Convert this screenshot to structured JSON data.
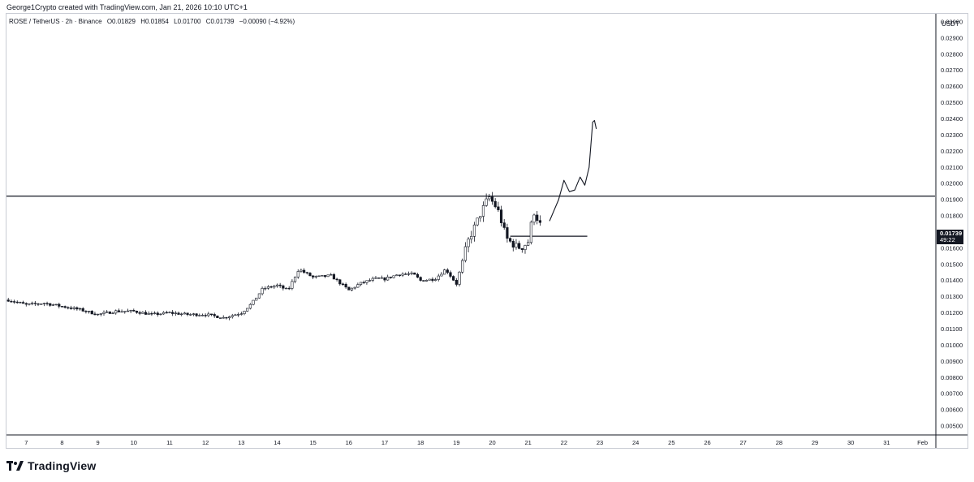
{
  "header": {
    "caption": "George1Crypto created with TradingView.com, Jan 21, 2026 10:10 UTC+1"
  },
  "symbol": {
    "name": "ROSE / TetherUS · 2h · Binance",
    "open": "O0.01829",
    "high": "H0.01854",
    "low": "L0.01700",
    "close": "C0.01739",
    "change": "−0.00090 (−4.92%)"
  },
  "price_axis": {
    "currency": "USDT",
    "last_price": "0.01739",
    "countdown": "49:22"
  },
  "brand": {
    "name": "TradingView"
  },
  "colors": {
    "candle": "#131722",
    "axis_border": "#c9ccd4",
    "background": "#ffffff"
  },
  "chart_data": {
    "type": "candlestick",
    "y_ticks": [
      "0.03000",
      "0.02900",
      "0.02800",
      "0.02700",
      "0.02600",
      "0.02500",
      "0.02400",
      "0.02300",
      "0.02200",
      "0.02100",
      "0.02000",
      "0.01900",
      "0.01800",
      "0.01700",
      "0.01600",
      "0.01500",
      "0.01400",
      "0.01300",
      "0.01200",
      "0.01100",
      "0.01000",
      "0.00900",
      "0.00800",
      "0.00700",
      "0.00600",
      "0.00500"
    ],
    "ylim": [
      0.0045,
      0.0305
    ],
    "x_ticks": [
      {
        "label": "7",
        "day": 7
      },
      {
        "label": "8",
        "day": 8
      },
      {
        "label": "9",
        "day": 9
      },
      {
        "label": "10",
        "day": 10
      },
      {
        "label": "11",
        "day": 11
      },
      {
        "label": "12",
        "day": 12
      },
      {
        "label": "13",
        "day": 13
      },
      {
        "label": "14",
        "day": 14
      },
      {
        "label": "15",
        "day": 15
      },
      {
        "label": "16",
        "day": 16
      },
      {
        "label": "17",
        "day": 17
      },
      {
        "label": "18",
        "day": 18
      },
      {
        "label": "19",
        "day": 19
      },
      {
        "label": "20",
        "day": 20
      },
      {
        "label": "21",
        "day": 21
      },
      {
        "label": "22",
        "day": 22
      },
      {
        "label": "23",
        "day": 23
      },
      {
        "label": "24",
        "day": 24
      },
      {
        "label": "25",
        "day": 25
      },
      {
        "label": "26",
        "day": 26
      },
      {
        "label": "27",
        "day": 27
      },
      {
        "label": "28",
        "day": 28
      },
      {
        "label": "29",
        "day": 29
      },
      {
        "label": "30",
        "day": 30
      },
      {
        "label": "31",
        "day": 31
      },
      {
        "label": "Feb",
        "day": 32
      }
    ],
    "x_domain": [
      6.45,
      32.35
    ],
    "price_path": [
      [
        6.5,
        0.0128
      ],
      [
        7.0,
        0.0125
      ],
      [
        7.5,
        0.0126
      ],
      [
        8.0,
        0.0124
      ],
      [
        8.5,
        0.0122
      ],
      [
        9.0,
        0.0119
      ],
      [
        9.5,
        0.0121
      ],
      [
        10.0,
        0.0121
      ],
      [
        10.5,
        0.0119
      ],
      [
        11.0,
        0.012
      ],
      [
        11.5,
        0.0119
      ],
      [
        12.0,
        0.0119
      ],
      [
        12.5,
        0.0117
      ],
      [
        13.0,
        0.012
      ],
      [
        13.3,
        0.0126
      ],
      [
        13.6,
        0.0135
      ],
      [
        14.0,
        0.0137
      ],
      [
        14.3,
        0.0134
      ],
      [
        14.6,
        0.0147
      ],
      [
        15.0,
        0.0142
      ],
      [
        15.5,
        0.0143
      ],
      [
        16.0,
        0.0134
      ],
      [
        16.3,
        0.0138
      ],
      [
        16.7,
        0.0141
      ],
      [
        17.0,
        0.0141
      ],
      [
        17.4,
        0.0144
      ],
      [
        17.8,
        0.0144
      ],
      [
        18.0,
        0.014
      ],
      [
        18.4,
        0.0141
      ],
      [
        18.7,
        0.0147
      ],
      [
        19.0,
        0.0138
      ],
      [
        19.3,
        0.0163
      ],
      [
        19.6,
        0.0178
      ],
      [
        19.9,
        0.0192
      ],
      [
        20.15,
        0.0184
      ],
      [
        20.4,
        0.0166
      ],
      [
        20.6,
        0.0162
      ],
      [
        20.8,
        0.016
      ],
      [
        21.0,
        0.0164
      ],
      [
        21.15,
        0.0183
      ],
      [
        21.35,
        0.0174
      ]
    ],
    "horizontal_levels": [
      0.01922
    ],
    "segments": [
      {
        "start_day": 20.5,
        "end_day": 22.65,
        "price": 0.01674
      }
    ],
    "projection_path": [
      [
        21.6,
        0.0177
      ],
      [
        21.85,
        0.019
      ],
      [
        22.0,
        0.0202
      ],
      [
        22.15,
        0.0195
      ],
      [
        22.3,
        0.0196
      ],
      [
        22.45,
        0.0204
      ],
      [
        22.58,
        0.0199
      ],
      [
        22.7,
        0.021
      ],
      [
        22.8,
        0.0238
      ],
      [
        22.85,
        0.0239
      ],
      [
        22.9,
        0.0234
      ]
    ]
  }
}
